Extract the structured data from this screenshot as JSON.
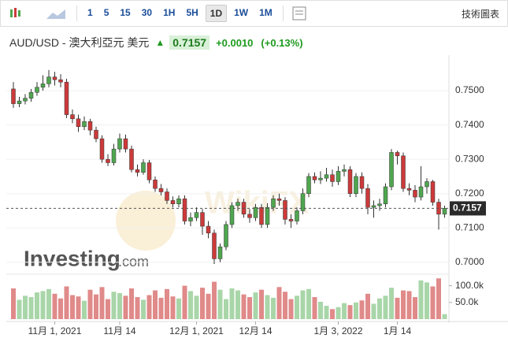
{
  "toolbar": {
    "intervals": [
      "1",
      "5",
      "15",
      "30",
      "1H",
      "5H",
      "1D",
      "1W",
      "1M"
    ],
    "selected": "1D",
    "tech_charts": "技術圖表"
  },
  "header": {
    "symbol": "AUD/USD - 澳大利亞元 美元",
    "price": 0.7157,
    "change": "+0.0010",
    "change_pct": "(+0.13%)"
  },
  "logo": {
    "name": "Investing",
    "suffix": ".com"
  },
  "chart_data": {
    "type": "candlestick",
    "categories": [
      null,
      null,
      null,
      null,
      null,
      null,
      null,
      "11月 1, 2021",
      null,
      null,
      null,
      null,
      null,
      null,
      null,
      null,
      null,
      null,
      "11月 14",
      null,
      null,
      null,
      null,
      null,
      null,
      null,
      null,
      null,
      null,
      null,
      null,
      "12月 1, 2021",
      null,
      null,
      null,
      null,
      null,
      null,
      null,
      null,
      null,
      "12月 14",
      null,
      null,
      null,
      null,
      null,
      null,
      null,
      null,
      null,
      null,
      null,
      null,
      null,
      "1月 3, 2022",
      null,
      null,
      null,
      null,
      null,
      null,
      null,
      null,
      null,
      "1月 14",
      null,
      null,
      null,
      null,
      null,
      null,
      null,
      null
    ],
    "open": [
      0.7505,
      0.7462,
      0.747,
      0.7478,
      0.7495,
      0.751,
      0.752,
      0.754,
      0.7532,
      0.7525,
      0.743,
      0.7418,
      0.7395,
      0.741,
      0.7385,
      0.736,
      0.73,
      0.729,
      0.733,
      0.736,
      0.733,
      0.727,
      0.7262,
      0.729,
      0.724,
      0.7215,
      0.7205,
      0.718,
      0.717,
      0.7185,
      0.712,
      0.713,
      0.7145,
      0.7105,
      0.7085,
      0.701,
      0.7045,
      0.711,
      0.7165,
      0.7175,
      0.714,
      0.713,
      0.716,
      0.711,
      0.716,
      0.7185,
      0.718,
      0.7125,
      0.712,
      0.715,
      0.72,
      0.725,
      0.724,
      0.7245,
      0.7255,
      0.7235,
      0.7265,
      0.727,
      0.72,
      0.725,
      0.7215,
      0.716,
      0.7165,
      0.717,
      0.722,
      0.732,
      0.731,
      0.7215,
      0.721,
      0.719,
      0.722,
      0.7235,
      0.7175,
      0.714
    ],
    "high": [
      0.7525,
      0.7482,
      0.749,
      0.7505,
      0.7525,
      0.7545,
      0.756,
      0.7555,
      0.7548,
      0.7535,
      0.7445,
      0.743,
      0.7425,
      0.7418,
      0.7395,
      0.737,
      0.7315,
      0.7345,
      0.7375,
      0.7372,
      0.734,
      0.7285,
      0.73,
      0.7298,
      0.725,
      0.7228,
      0.7215,
      0.7192,
      0.7195,
      0.7195,
      0.7145,
      0.716,
      0.7155,
      0.712,
      0.7095,
      0.7055,
      0.712,
      0.7175,
      0.7185,
      0.7185,
      0.7155,
      0.717,
      0.717,
      0.7172,
      0.7195,
      0.72,
      0.719,
      0.714,
      0.716,
      0.7215,
      0.726,
      0.7262,
      0.7265,
      0.7275,
      0.727,
      0.728,
      0.7285,
      0.728,
      0.726,
      0.7262,
      0.7228,
      0.718,
      0.7185,
      0.723,
      0.733,
      0.7325,
      0.732,
      0.723,
      0.7225,
      0.728,
      0.7245,
      0.724,
      0.7185,
      0.7165
    ],
    "low": [
      0.745,
      0.7452,
      0.746,
      0.7468,
      0.7485,
      0.75,
      0.751,
      0.7515,
      0.751,
      0.742,
      0.7405,
      0.738,
      0.7385,
      0.737,
      0.735,
      0.729,
      0.728,
      0.7282,
      0.732,
      0.732,
      0.7262,
      0.725,
      0.7255,
      0.723,
      0.7205,
      0.7195,
      0.717,
      0.716,
      0.716,
      0.711,
      0.7105,
      0.712,
      0.708,
      0.707,
      0.6995,
      0.7,
      0.7035,
      0.71,
      0.715,
      0.713,
      0.7115,
      0.712,
      0.71,
      0.71,
      0.715,
      0.7165,
      0.711,
      0.71,
      0.711,
      0.714,
      0.719,
      0.723,
      0.7228,
      0.7235,
      0.722,
      0.7225,
      0.725,
      0.719,
      0.719,
      0.72,
      0.714,
      0.713,
      0.715,
      0.716,
      0.721,
      0.7285,
      0.7205,
      0.7195,
      0.7175,
      0.718,
      0.72,
      0.7165,
      0.7095,
      0.713
    ],
    "close": [
      0.7462,
      0.747,
      0.7478,
      0.7495,
      0.751,
      0.752,
      0.754,
      0.7532,
      0.7525,
      0.743,
      0.7418,
      0.7395,
      0.741,
      0.7385,
      0.736,
      0.73,
      0.729,
      0.733,
      0.736,
      0.733,
      0.727,
      0.7262,
      0.729,
      0.724,
      0.7215,
      0.7205,
      0.718,
      0.717,
      0.7185,
      0.712,
      0.713,
      0.7145,
      0.7105,
      0.7085,
      0.701,
      0.7045,
      0.711,
      0.7165,
      0.7175,
      0.714,
      0.713,
      0.716,
      0.711,
      0.716,
      0.7185,
      0.718,
      0.7125,
      0.712,
      0.715,
      0.72,
      0.725,
      0.724,
      0.7245,
      0.7255,
      0.7235,
      0.7265,
      0.727,
      0.72,
      0.725,
      0.7215,
      0.716,
      0.7165,
      0.717,
      0.722,
      0.732,
      0.731,
      0.7215,
      0.721,
      0.719,
      0.722,
      0.7235,
      0.7175,
      0.714,
      0.7157
    ],
    "volume": [
      92000,
      58000,
      70000,
      66000,
      80000,
      84000,
      90000,
      76000,
      62000,
      98000,
      72000,
      68000,
      55000,
      88000,
      74000,
      96000,
      60000,
      82000,
      78000,
      70000,
      92000,
      66000,
      58000,
      72000,
      86000,
      64000,
      90000,
      68000,
      62000,
      100000,
      84000,
      70000,
      94000,
      76000,
      112000,
      88000,
      60000,
      92000,
      86000,
      74000,
      66000,
      80000,
      88000,
      72000,
      64000,
      96000,
      82000,
      60000,
      70000,
      86000,
      90000,
      66000,
      52000,
      40000,
      30000,
      36000,
      48000,
      42000,
      50000,
      56000,
      76000,
      46000,
      62000,
      70000,
      94000,
      64000,
      86000,
      84000,
      66000,
      116000,
      110000,
      98000,
      122000,
      15000
    ],
    "ylim": [
      0.6972,
      0.7592
    ],
    "yticks": [
      {
        "value": 0.7,
        "label": "0.7000"
      },
      {
        "value": 0.71,
        "label": "0.7100"
      },
      {
        "value": 0.72,
        "label": "0.7200"
      },
      {
        "value": 0.73,
        "label": "0.7300"
      },
      {
        "value": 0.74,
        "label": "0.7400"
      },
      {
        "value": 0.75,
        "label": "0.7500"
      }
    ],
    "vlim": [
      0,
      125000
    ],
    "vticks": [
      {
        "value": 50000,
        "label": "50.0k"
      },
      {
        "value": 100000,
        "label": "100.0k"
      }
    ],
    "up_color": "#4fa64f",
    "down_color": "#cc3a3a",
    "up_volume_color": "#a9d6a9",
    "down_volume_color": "#e08a8a"
  }
}
